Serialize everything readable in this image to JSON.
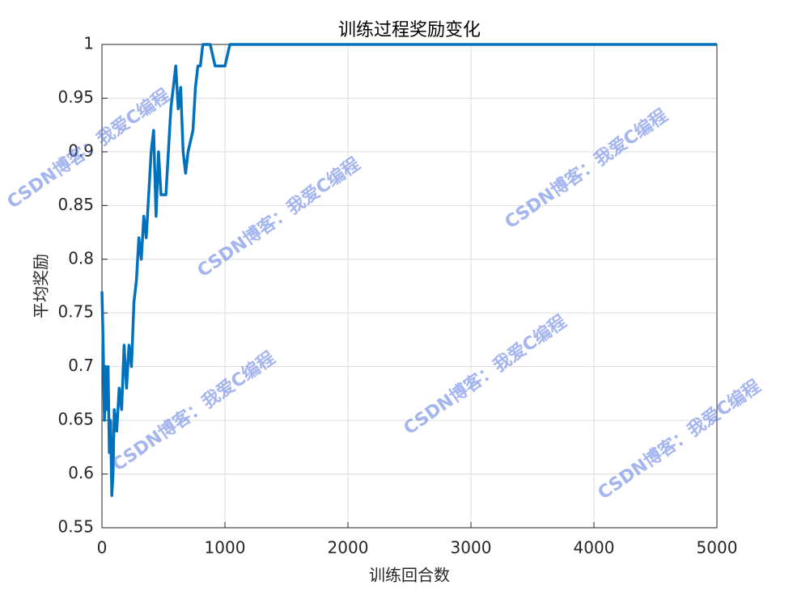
{
  "chart_data": {
    "type": "line",
    "title": "训练过程奖励变化",
    "xlabel": "训练回合数",
    "ylabel": "平均奖励",
    "watermark": "CSDN博客：我爱C编程",
    "x": [
      0,
      10,
      20,
      30,
      40,
      50,
      60,
      70,
      80,
      90,
      100,
      120,
      140,
      160,
      180,
      200,
      220,
      240,
      260,
      280,
      300,
      320,
      340,
      360,
      380,
      400,
      420,
      440,
      460,
      480,
      520,
      560,
      580,
      600,
      620,
      640,
      660,
      680,
      700,
      740,
      760,
      780,
      800,
      820,
      880,
      920,
      1000,
      1040,
      5000
    ],
    "series": [
      {
        "name": "平均奖励",
        "color": "#0072bd",
        "values": [
          0.77,
          0.72,
          0.65,
          0.7,
          0.66,
          0.7,
          0.62,
          0.65,
          0.58,
          0.6,
          0.66,
          0.64,
          0.68,
          0.66,
          0.72,
          0.68,
          0.72,
          0.7,
          0.76,
          0.78,
          0.82,
          0.8,
          0.84,
          0.82,
          0.86,
          0.9,
          0.92,
          0.84,
          0.9,
          0.86,
          0.86,
          0.94,
          0.96,
          0.98,
          0.94,
          0.96,
          0.9,
          0.88,
          0.9,
          0.92,
          0.96,
          0.98,
          0.98,
          1,
          1,
          0.98,
          0.98,
          1,
          1
        ]
      }
    ],
    "xlim": [
      0,
      5000
    ],
    "xticks": [
      0,
      1000,
      2000,
      3000,
      4000,
      5000
    ],
    "ylim": [
      0.55,
      1
    ],
    "yticks": [
      0.55,
      0.6,
      0.65,
      0.7,
      0.75,
      0.8,
      0.85,
      0.9,
      0.95,
      1
    ],
    "grid": true
  }
}
